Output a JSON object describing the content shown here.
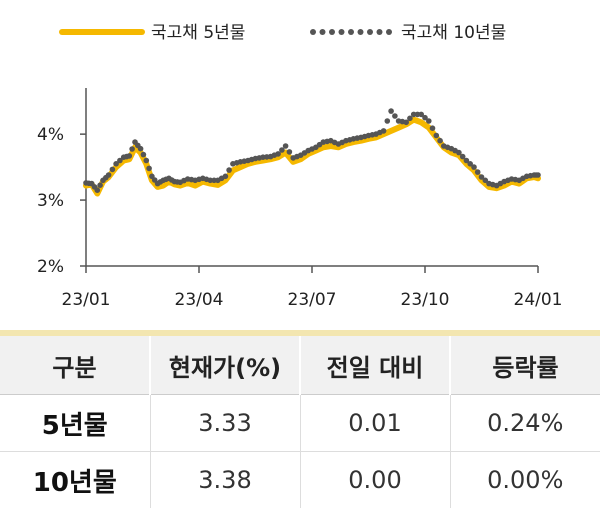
{
  "chart_data": {
    "type": "line",
    "title": "",
    "xlabel": "",
    "ylabel": "",
    "x_tick_labels": [
      "23/01",
      "23/04",
      "23/07",
      "23/10",
      "24/01"
    ],
    "y_tick_labels": [
      "4%",
      "3%",
      "2%"
    ],
    "y_ticks": [
      4,
      3,
      2
    ],
    "ylim": [
      2,
      4.7
    ],
    "xlim": [
      0,
      12
    ],
    "legend_position": "top",
    "grid": false,
    "series": [
      {
        "name": "국고채 5년물",
        "style": "solid",
        "color": "#f5b800",
        "x": [
          0,
          0.15,
          0.3,
          0.45,
          0.6,
          0.8,
          1.0,
          1.15,
          1.3,
          1.45,
          1.6,
          1.75,
          1.9,
          2.05,
          2.2,
          2.35,
          2.5,
          2.7,
          2.9,
          3.1,
          3.3,
          3.5,
          3.7,
          3.9,
          4.1,
          4.3,
          4.5,
          4.7,
          4.9,
          5.1,
          5.3,
          5.5,
          5.7,
          5.9,
          6.1,
          6.3,
          6.5,
          6.7,
          6.9,
          7.1,
          7.3,
          7.5,
          7.7,
          7.9,
          8.1,
          8.3,
          8.5,
          8.7,
          8.9,
          9.1,
          9.3,
          9.5,
          9.7,
          9.9,
          10.1,
          10.3,
          10.5,
          10.7,
          10.9,
          11.1,
          11.3,
          11.5,
          11.7,
          11.9,
          12.0
        ],
        "y": [
          3.22,
          3.24,
          3.1,
          3.28,
          3.35,
          3.5,
          3.6,
          3.62,
          3.8,
          3.72,
          3.55,
          3.3,
          3.2,
          3.22,
          3.28,
          3.24,
          3.22,
          3.26,
          3.22,
          3.28,
          3.25,
          3.23,
          3.3,
          3.45,
          3.5,
          3.55,
          3.58,
          3.6,
          3.62,
          3.65,
          3.72,
          3.58,
          3.62,
          3.7,
          3.75,
          3.8,
          3.82,
          3.8,
          3.85,
          3.88,
          3.9,
          3.93,
          3.95,
          4.0,
          4.05,
          4.1,
          4.15,
          4.22,
          4.18,
          4.1,
          3.95,
          3.8,
          3.72,
          3.68,
          3.55,
          3.45,
          3.3,
          3.2,
          3.18,
          3.22,
          3.28,
          3.25,
          3.33,
          3.35,
          3.33
        ]
      },
      {
        "name": "국고채 10년물",
        "style": "dotted",
        "color": "#555555",
        "x": [
          0,
          0.15,
          0.3,
          0.45,
          0.6,
          0.8,
          1.0,
          1.15,
          1.3,
          1.45,
          1.6,
          1.75,
          1.9,
          2.05,
          2.2,
          2.35,
          2.5,
          2.7,
          2.9,
          3.1,
          3.3,
          3.5,
          3.7,
          3.9,
          4.1,
          4.3,
          4.5,
          4.7,
          4.9,
          5.1,
          5.3,
          5.5,
          5.7,
          5.9,
          6.1,
          6.3,
          6.5,
          6.7,
          6.9,
          7.1,
          7.3,
          7.5,
          7.7,
          7.9,
          8.1,
          8.3,
          8.5,
          8.7,
          8.9,
          9.1,
          9.3,
          9.5,
          9.7,
          9.9,
          10.1,
          10.3,
          10.5,
          10.7,
          10.9,
          11.1,
          11.3,
          11.5,
          11.7,
          11.9,
          12.0
        ],
        "y": [
          3.26,
          3.25,
          3.15,
          3.3,
          3.38,
          3.55,
          3.65,
          3.67,
          3.88,
          3.78,
          3.6,
          3.36,
          3.25,
          3.3,
          3.33,
          3.28,
          3.27,
          3.32,
          3.3,
          3.33,
          3.3,
          3.3,
          3.36,
          3.55,
          3.58,
          3.6,
          3.63,
          3.65,
          3.66,
          3.7,
          3.82,
          3.64,
          3.68,
          3.75,
          3.8,
          3.88,
          3.9,
          3.85,
          3.9,
          3.93,
          3.95,
          3.98,
          4.0,
          4.05,
          4.35,
          4.2,
          4.18,
          4.3,
          4.3,
          4.2,
          3.98,
          3.82,
          3.78,
          3.72,
          3.6,
          3.5,
          3.35,
          3.25,
          3.22,
          3.28,
          3.32,
          3.3,
          3.36,
          3.38,
          3.38
        ]
      }
    ]
  },
  "table": {
    "headers": [
      "구분",
      "현재가(%)",
      "전일 대비",
      "등락률"
    ],
    "rows": [
      [
        "5년물",
        "3.33",
        "0.01",
        "0.24%"
      ],
      [
        "10년물",
        "3.38",
        "0.00",
        "0.00%"
      ]
    ]
  }
}
